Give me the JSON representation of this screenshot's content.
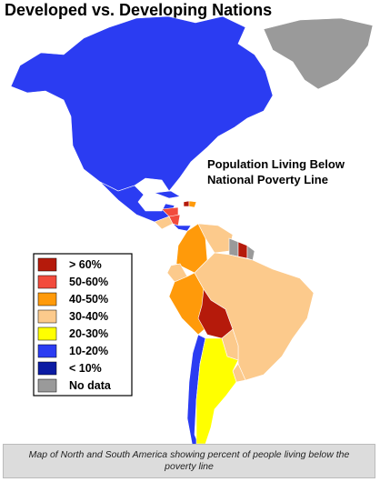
{
  "title": "Developed vs. Developing Nations",
  "map_title": [
    "Population Living Below",
    "National Poverty Line"
  ],
  "legend": [
    {
      "label": "> 60%",
      "color": "#b51a0b"
    },
    {
      "label": "50-60%",
      "color": "#f24b3c"
    },
    {
      "label": "40-50%",
      "color": "#ff9a0a"
    },
    {
      "label": "30-40%",
      "color": "#fcca8c"
    },
    {
      "label": "20-30%",
      "color": "#ffff00"
    },
    {
      "label": "10-20%",
      "color": "#2b3cf2"
    },
    {
      "label": "< 10%",
      "color": "#0b1ba3"
    },
    {
      "label": "No data",
      "color": "#9a9a9a"
    }
  ],
  "caption": "Map of North and South America showing percent of people living below the poverty line"
}
